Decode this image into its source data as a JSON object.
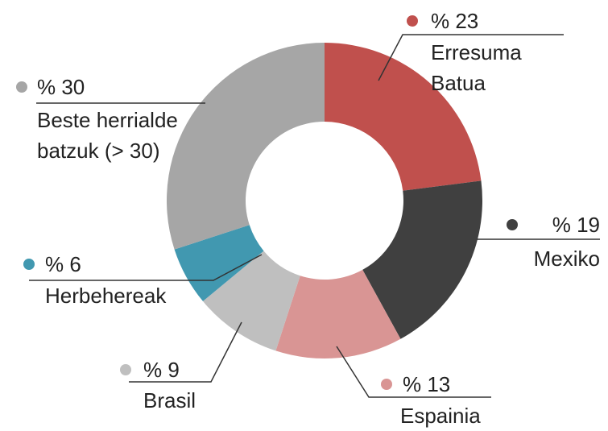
{
  "chart_data": {
    "type": "donut",
    "categories": [
      "Erresuma Batua",
      "Mexiko",
      "Espainia",
      "Brasil",
      "Herbehereak",
      "Beste herrialde batzuk (> 30)"
    ],
    "values": [
      23,
      19,
      13,
      9,
      6,
      30
    ],
    "value_labels": [
      "% 23",
      "% 19",
      "% 13",
      "% 9",
      "% 6",
      "% 30"
    ],
    "colors": [
      "#c0504d",
      "#404040",
      "#d99594",
      "#bfbfbf",
      "#4198b0",
      "#a6a6a6"
    ]
  }
}
